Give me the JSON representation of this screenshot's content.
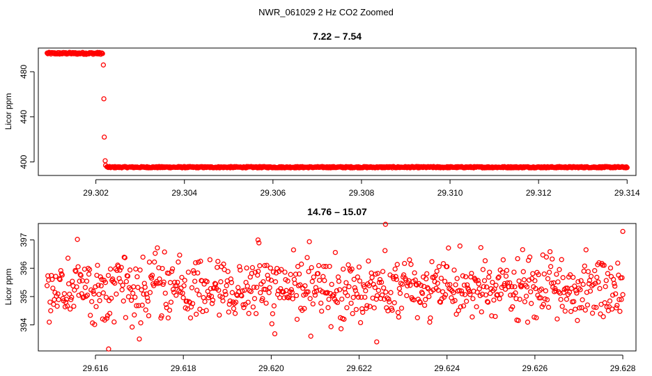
{
  "figure_title": "NWR_061029  2 Hz CO2 Zoomed",
  "colors": {
    "points": "#ff0000",
    "axes": "#000000"
  },
  "chart_data": [
    {
      "type": "scatter",
      "title": "7.22 – 7.54",
      "xlabel": "",
      "ylabel": "Licor ppm",
      "xlim": [
        29.3007,
        29.3142
      ],
      "ylim": [
        388,
        501
      ],
      "x_ticks": [
        "29.302",
        "29.304",
        "29.306",
        "29.308",
        "29.310",
        "29.312",
        "29.314"
      ],
      "y_ticks": [
        "400",
        "440",
        "480"
      ],
      "grid": false,
      "legend": "none",
      "series": [
        {
          "segments": [
            {
              "x_start": 29.3009,
              "x_end": 29.30215,
              "y_mean": 496.3,
              "y_jitter": 0.9
            },
            {
              "x_start": 29.30225,
              "x_end": 29.314,
              "y_mean": 395.3,
              "y_jitter": 0.6
            }
          ],
          "transition_points": [
            {
              "x": 29.30217,
              "y": 486
            },
            {
              "x": 29.30218,
              "y": 456
            },
            {
              "x": 29.30219,
              "y": 422
            },
            {
              "x": 29.30221,
              "y": 401
            },
            {
              "x": 29.30222,
              "y": 397
            }
          ]
        }
      ]
    },
    {
      "type": "scatter",
      "title": "14.76 – 15.07",
      "xlabel": "",
      "ylabel": "Licor ppm",
      "xlim": [
        29.6147,
        29.6283
      ],
      "ylim": [
        393.08,
        397.58
      ],
      "x_ticks": [
        "29.616",
        "29.618",
        "29.620",
        "29.622",
        "29.624",
        "29.626",
        "29.628"
      ],
      "y_ticks": [
        "394",
        "395",
        "396",
        "397"
      ],
      "grid": false,
      "legend": "none",
      "series": [
        {
          "x_start": 29.6149,
          "x_end": 29.628,
          "n_points": 800,
          "y_mean": 395.25,
          "y_sd": 0.55,
          "extreme_points": [
            {
              "x": 29.6163,
              "y": 393.15
            },
            {
              "x": 29.6226,
              "y": 397.55
            },
            {
              "x": 29.6224,
              "y": 393.4
            },
            {
              "x": 29.628,
              "y": 397.3
            },
            {
              "x": 29.6197,
              "y": 397.0
            }
          ]
        }
      ]
    }
  ]
}
